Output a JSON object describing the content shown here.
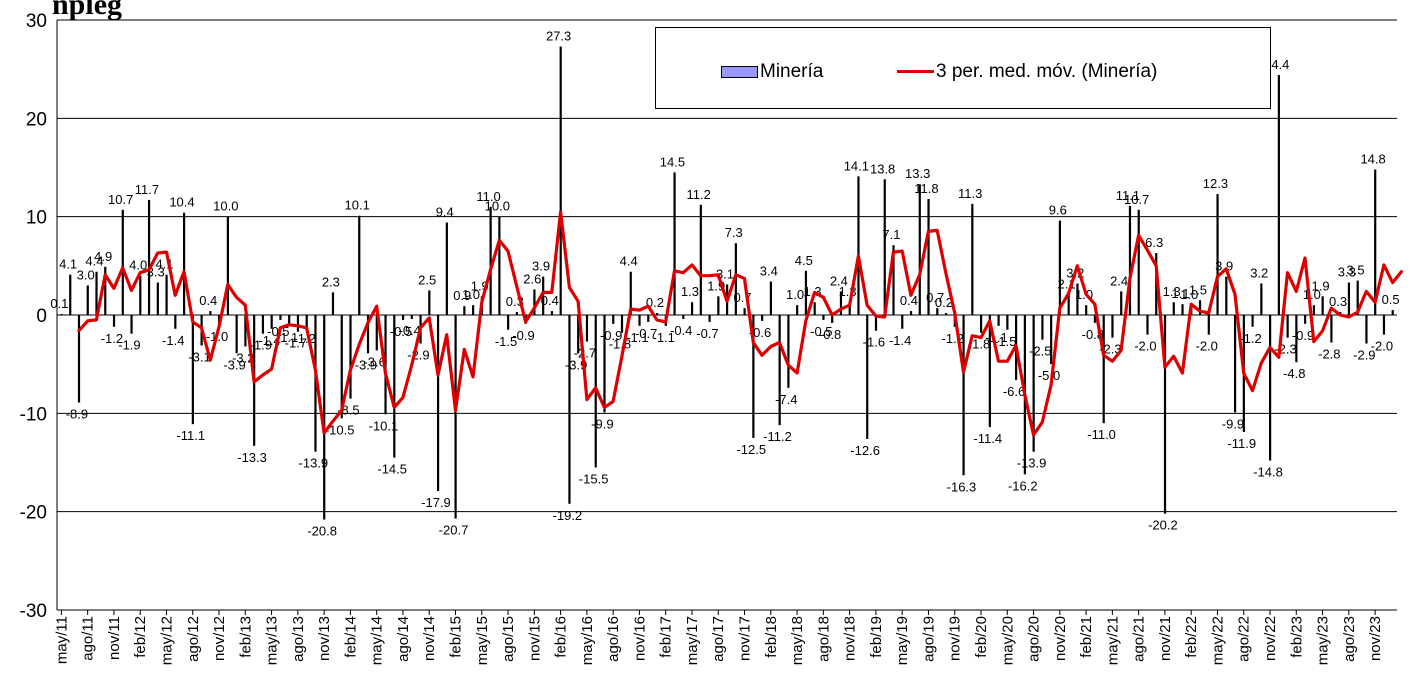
{
  "title": "npleg",
  "chart_data": {
    "type": "bar",
    "title": "",
    "xlabel": "",
    "ylabel": "",
    "ylim": [
      -30,
      30
    ],
    "yticks": [
      -30,
      -20,
      -10,
      0,
      10,
      20,
      30
    ],
    "grid": true,
    "legend_position": "top-center",
    "legend": {
      "bar": "Minería",
      "line": "3 per. med. móv. (Minería)"
    },
    "x_tick_labels": [
      "may/11",
      "ago/11",
      "nov/11",
      "feb/12",
      "may/12",
      "ago/12",
      "nov/12",
      "feb/13",
      "may/13",
      "ago/13",
      "nov/13",
      "feb/14",
      "may/14",
      "ago/14",
      "nov/14",
      "feb/15",
      "may/15",
      "ago/15",
      "nov/15",
      "feb/16",
      "may/16",
      "ago/16",
      "nov/16",
      "feb/17",
      "may/17",
      "ago/17",
      "nov/17",
      "feb/18",
      "may/18",
      "ago/18",
      "nov/18",
      "feb/19",
      "may/19",
      "ago/19",
      "nov/19",
      "feb/20",
      "may/20",
      "ago/20",
      "nov/20",
      "feb/21",
      "may/21",
      "ago/21",
      "nov/21",
      "feb/22",
      "may/22",
      "ago/22",
      "nov/22",
      "feb/23",
      "may/23",
      "ago/23",
      "nov/23"
    ],
    "series": [
      {
        "name": "Minería",
        "type": "bar",
        "color": "#9999ff",
        "values": [
          0.1,
          4.1,
          -8.9,
          3.0,
          4.4,
          4.9,
          -1.2,
          10.7,
          -1.9,
          4.0,
          11.7,
          3.3,
          4.1,
          -1.4,
          10.4,
          -11.1,
          -3.1,
          0.4,
          -1.0,
          10.0,
          -3.9,
          -3.2,
          -13.3,
          -1.9,
          -1.4,
          -0.5,
          -1.1,
          -1.7,
          -1.2,
          -13.9,
          -20.8,
          2.3,
          -10.5,
          -8.5,
          10.1,
          -3.9,
          -3.6,
          -10.1,
          -14.5,
          -0.5,
          -0.4,
          -2.9,
          2.5,
          -17.9,
          9.4,
          -20.7,
          0.9,
          1.0,
          1.9,
          11.0,
          10.0,
          -1.5,
          0.3,
          -0.9,
          2.6,
          3.9,
          0.4,
          27.3,
          -19.2,
          -3.9,
          -2.7,
          -15.5,
          -9.9,
          -0.9,
          -1.8,
          4.4,
          -1.1,
          -0.7,
          0.2,
          -1.1,
          14.5,
          -0.4,
          1.3,
          11.2,
          -0.7,
          1.9,
          3.1,
          7.3,
          0.7,
          -12.5,
          -0.6,
          3.4,
          -11.2,
          -7.4,
          1.0,
          4.5,
          1.3,
          -0.5,
          -0.8,
          2.4,
          1.3,
          14.1,
          -12.6,
          -1.6,
          13.8,
          7.1,
          -1.4,
          0.4,
          13.3,
          11.8,
          0.7,
          0.2,
          -1.2,
          -16.3,
          11.3,
          -1.8,
          -11.4,
          -1.1,
          -1.5,
          -6.6,
          -16.2,
          -13.9,
          -2.5,
          -5.0,
          9.6,
          2.1,
          3.2,
          1.0,
          -0.8,
          -11.0,
          -2.3,
          2.4,
          11.1,
          10.7,
          -2.0,
          6.3,
          -20.2,
          1.3,
          1.1,
          1.0,
          1.5,
          -2.0,
          12.3,
          3.9,
          -9.9,
          -11.9,
          -1.2,
          3.2,
          -14.8,
          24.4,
          -2.3,
          -4.8,
          -0.9,
          1.0,
          1.9,
          -2.8,
          0.3,
          3.3,
          3.5,
          -2.9,
          14.8,
          -2.0,
          0.5
        ]
      },
      {
        "name": "3 per. med. móv. (Minería)",
        "type": "line",
        "color": "#dd0000",
        "values": [
          null,
          null,
          -1.6,
          -0.6,
          -0.5,
          4.1,
          2.7,
          4.8,
          2.5,
          4.3,
          4.6,
          6.3,
          6.4,
          2.0,
          4.4,
          -0.7,
          -1.3,
          -4.6,
          -1.2,
          3.1,
          1.8,
          1.0,
          -6.8,
          -6.1,
          -5.5,
          -1.3,
          -1.0,
          -1.1,
          -1.3,
          -5.6,
          -12.0,
          -10.8,
          -9.7,
          -5.6,
          -3.0,
          -0.8,
          0.9,
          -5.9,
          -9.4,
          -8.4,
          -5.1,
          -1.3,
          -0.3,
          -6.1,
          -2.0,
          -9.7,
          -3.5,
          -6.3,
          1.3,
          4.6,
          7.6,
          6.5,
          2.9,
          -0.7,
          0.7,
          2.3,
          2.3,
          10.5,
          2.8,
          1.4,
          -8.6,
          -7.4,
          -9.4,
          -8.8,
          -4.2,
          0.6,
          0.5,
          0.9,
          -0.5,
          -0.7,
          4.5,
          4.3,
          5.1,
          4.0,
          4.0,
          4.1,
          1.4,
          4.1,
          3.7,
          -2.8,
          -4.1,
          -3.2,
          -2.8,
          -5.1,
          -5.9,
          -0.6,
          2.3,
          1.8,
          0.0,
          0.6,
          1.0,
          6.0,
          1.0,
          -0.1,
          -0.2,
          6.4,
          6.5,
          2.0,
          4.1,
          8.5,
          8.6,
          4.2,
          0.2,
          -5.8,
          -2.1,
          -2.3,
          -0.6,
          -4.7,
          -4.7,
          -3.1,
          -8.1,
          -12.2,
          -10.9,
          -7.1,
          0.7,
          2.2,
          5.0,
          2.1,
          1.1,
          -4.1,
          -4.7,
          -3.6,
          3.7,
          8.1,
          6.6,
          5.0,
          -5.3,
          -4.2,
          -5.9,
          1.1,
          0.4,
          0.2,
          3.9,
          4.7,
          2.1,
          -5.9,
          -7.7,
          -4.9,
          -3.3,
          -4.3,
          4.3,
          2.4,
          5.8,
          -2.7,
          -1.6,
          0.7,
          0.0,
          -0.2,
          0.3,
          2.4,
          1.3,
          5.1,
          3.3,
          4.4
        ]
      }
    ]
  }
}
